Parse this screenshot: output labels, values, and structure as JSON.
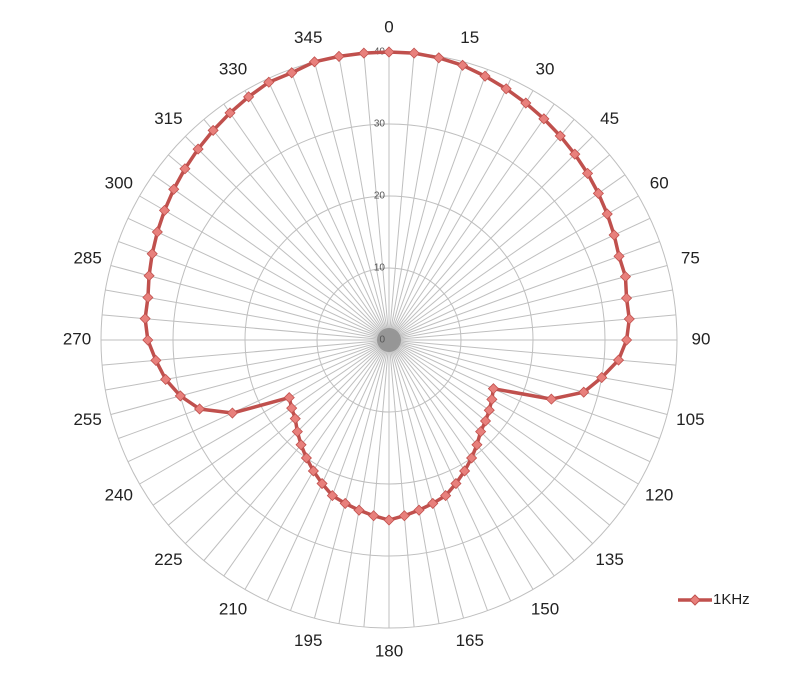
{
  "chart_data": {
    "type": "radar",
    "categories": [
      "0",
      null,
      null,
      "15",
      null,
      null,
      "30",
      null,
      null,
      "45",
      null,
      null,
      "60",
      null,
      null,
      "75",
      null,
      null,
      "90",
      null,
      null,
      "105",
      null,
      null,
      "120",
      null,
      null,
      "135",
      null,
      null,
      "150",
      null,
      null,
      "165",
      null,
      null,
      "180",
      null,
      null,
      "195",
      null,
      null,
      "210",
      null,
      null,
      "225",
      null,
      null,
      "240",
      null,
      null,
      "255",
      null,
      null,
      "270",
      null,
      null,
      "285",
      null,
      null,
      "300",
      null,
      null,
      "315",
      null,
      null,
      "330",
      null,
      null,
      "345",
      null,
      null
    ],
    "series": [
      {
        "name": "1KHz",
        "color": "#c0504d",
        "values": [
          40,
          40,
          39.8,
          39.5,
          39,
          38.5,
          38,
          37.5,
          37,
          36.5,
          36,
          35.5,
          35,
          34.5,
          34,
          34,
          33.5,
          33.5,
          33,
          32,
          30,
          28,
          24,
          16,
          16.5,
          17,
          17.5,
          18,
          19,
          20,
          21,
          22,
          23,
          23.5,
          24,
          24.5,
          25,
          24.5,
          24,
          23.5,
          23,
          22,
          21,
          20,
          19,
          18,
          17,
          16.5,
          16,
          24,
          28,
          30,
          31.5,
          32.5,
          33.5,
          34,
          34,
          34.5,
          35,
          35.5,
          36,
          36.5,
          37,
          37.5,
          38,
          38.5,
          39,
          39.5,
          39.5,
          40,
          40,
          40
        ]
      }
    ],
    "rlim": [
      0,
      40
    ],
    "rticks": [
      0,
      10,
      20,
      30,
      40
    ],
    "grid": true,
    "legend": "bottom-right"
  }
}
